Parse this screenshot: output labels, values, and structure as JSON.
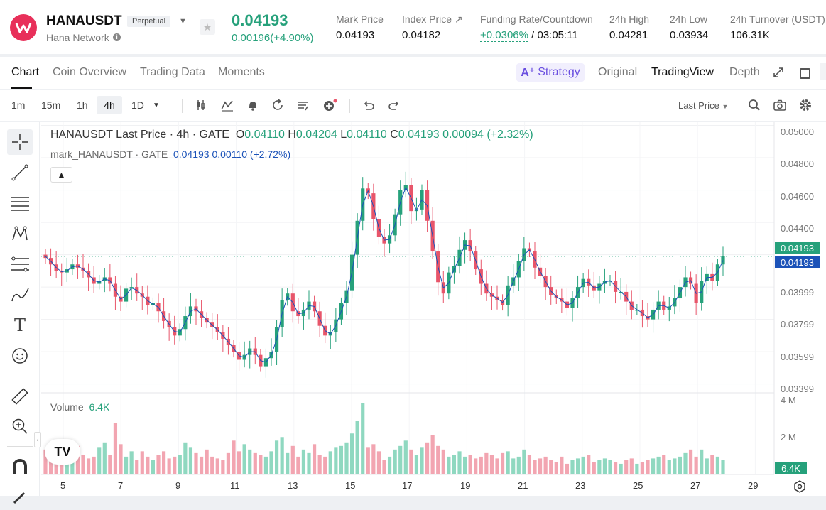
{
  "header": {
    "symbol": "HANAUSDT",
    "perp_badge": "Perpetual",
    "network": "Hana Network",
    "last_price": "0.04193",
    "change": "0.00196(+4.90%)",
    "stats": [
      {
        "label": "Mark Price",
        "value": "0.04193"
      },
      {
        "label": "Index Price ↗",
        "value": "0.04182"
      },
      {
        "label": "Funding Rate/Countdown",
        "value": "+0.0306%",
        "value2": " / 03:05:11"
      },
      {
        "label": "24h High",
        "value": "0.04281"
      },
      {
        "label": "24h Low",
        "value": "0.03934"
      },
      {
        "label": "24h Turnover (USDT)",
        "value": "106.31K"
      }
    ]
  },
  "tabs": {
    "chart": "Chart",
    "coin": "Coin Overview",
    "trading": "Trading Data",
    "moments": "Moments",
    "strategy": "Strategy",
    "original": "Original",
    "tradingview": "TradingView",
    "depth": "Depth"
  },
  "toolbar": {
    "timeframes": [
      "1m",
      "15m",
      "1h",
      "4h",
      "1D"
    ],
    "last_price_sel": "Last Price"
  },
  "legend": {
    "title": "HANAUSDT Last Price · 4h · GATE",
    "o": "0.04110",
    "h": "0.04204",
    "l": "0.04110",
    "c": "0.04193",
    "chg": "0.00094 (+2.32%)",
    "mark_name": "mark_HANAUSDT · GATE",
    "mark_val": "0.04193",
    "mark_chg": "0.00110 (+2.72%)",
    "volume_label": "Volume",
    "volume_val": "6.4K"
  },
  "axis": {
    "y": [
      "0.05000",
      "0.04800",
      "0.04600",
      "0.04400",
      "0.03999",
      "0.03799",
      "0.03599",
      "0.03399"
    ],
    "y_tag1": "0.04193",
    "y_tag2": "0.04193",
    "vol": [
      "4 M",
      "2 M"
    ],
    "vol_tag": "6.4K",
    "x": [
      "5",
      "7",
      "9",
      "11",
      "13",
      "15",
      "17",
      "19",
      "21",
      "23",
      "25",
      "27",
      "29"
    ]
  },
  "colors": {
    "up": "#26a17b",
    "down": "#e8556a",
    "mark": "#1b52b8"
  },
  "chart_data": {
    "type": "candlestick",
    "title": "HANAUSDT Last Price · 4h · GATE",
    "ylim": [
      0.0335,
      0.0502
    ],
    "close": [
      0.0418,
      0.0414,
      0.041,
      0.0409,
      0.0411,
      0.0414,
      0.0412,
      0.041,
      0.0406,
      0.0402,
      0.0404,
      0.0406,
      0.0402,
      0.0394,
      0.0391,
      0.0399,
      0.04,
      0.0396,
      0.0394,
      0.0389,
      0.039,
      0.0385,
      0.0379,
      0.0375,
      0.037,
      0.0374,
      0.0382,
      0.0388,
      0.0385,
      0.0381,
      0.0378,
      0.0375,
      0.0372,
      0.0368,
      0.0364,
      0.036,
      0.0355,
      0.0358,
      0.0362,
      0.0358,
      0.0351,
      0.0356,
      0.036,
      0.0375,
      0.0392,
      0.0396,
      0.0385,
      0.0382,
      0.0386,
      0.0391,
      0.0385,
      0.0376,
      0.037,
      0.0372,
      0.038,
      0.039,
      0.0398,
      0.042,
      0.0441,
      0.0461,
      0.0458,
      0.0442,
      0.0431,
      0.0427,
      0.0432,
      0.0445,
      0.046,
      0.0463,
      0.0447,
      0.0448,
      0.046,
      0.0441,
      0.0422,
      0.0403,
      0.0396,
      0.0409,
      0.0413,
      0.0423,
      0.0429,
      0.0422,
      0.0411,
      0.0402,
      0.0396,
      0.0394,
      0.0392,
      0.0389,
      0.0401,
      0.0406,
      0.0416,
      0.0424,
      0.0422,
      0.0412,
      0.0407,
      0.04,
      0.0395,
      0.0393,
      0.0391,
      0.0387,
      0.0393,
      0.04,
      0.0405,
      0.0401,
      0.0398,
      0.0402,
      0.0404,
      0.0404,
      0.0397,
      0.0397,
      0.0391,
      0.0386,
      0.0386,
      0.0382,
      0.038,
      0.0386,
      0.0391,
      0.0386,
      0.0388,
      0.0393,
      0.04,
      0.0406,
      0.0402,
      0.039,
      0.0404,
      0.0408,
      0.0404,
      0.0414,
      0.0419
    ],
    "volume": [
      1.4,
      1.3,
      1.5,
      1.2,
      1.1,
      1.3,
      1.6,
      1.1,
      0.9,
      1.0,
      1.5,
      1.8,
      1.1,
      2.9,
      1.7,
      1.0,
      1.3,
      0.8,
      1.3,
      1.0,
      0.8,
      1.1,
      1.3,
      0.9,
      1.0,
      1.1,
      1.8,
      1.5,
      1.2,
      1.0,
      1.4,
      1.0,
      0.9,
      0.8,
      1.2,
      1.9,
      1.3,
      1.7,
      1.4,
      1.2,
      1.1,
      1.0,
      1.3,
      1.9,
      2.1,
      1.2,
      1.6,
      1.0,
      1.4,
      1.2,
      1.7,
      1.1,
      1.0,
      1.3,
      1.5,
      1.6,
      1.8,
      2.3,
      3.0,
      4.0,
      1.5,
      1.7,
      1.3,
      0.8,
      1.0,
      1.4,
      1.6,
      1.9,
      1.4,
      1.1,
      1.5,
      1.8,
      2.2,
      1.6,
      1.4,
      1.0,
      1.1,
      1.3,
      1.0,
      1.1,
      0.9,
      1.0,
      1.2,
      1.1,
      0.9,
      1.2,
      1.3,
      0.9,
      1.0,
      1.4,
      1.1,
      0.8,
      0.9,
      1.0,
      0.8,
      0.7,
      1.0,
      0.6,
      0.8,
      0.9,
      1.0,
      1.1,
      0.7,
      0.8,
      0.9,
      0.8,
      0.7,
      0.6,
      0.8,
      0.9,
      0.6,
      0.7,
      0.8,
      0.9,
      1.0,
      1.1,
      0.8,
      0.9,
      1.0,
      1.2,
      1.4,
      1.0,
      1.4,
      0.9,
      1.1,
      1.0,
      0.8
    ]
  }
}
